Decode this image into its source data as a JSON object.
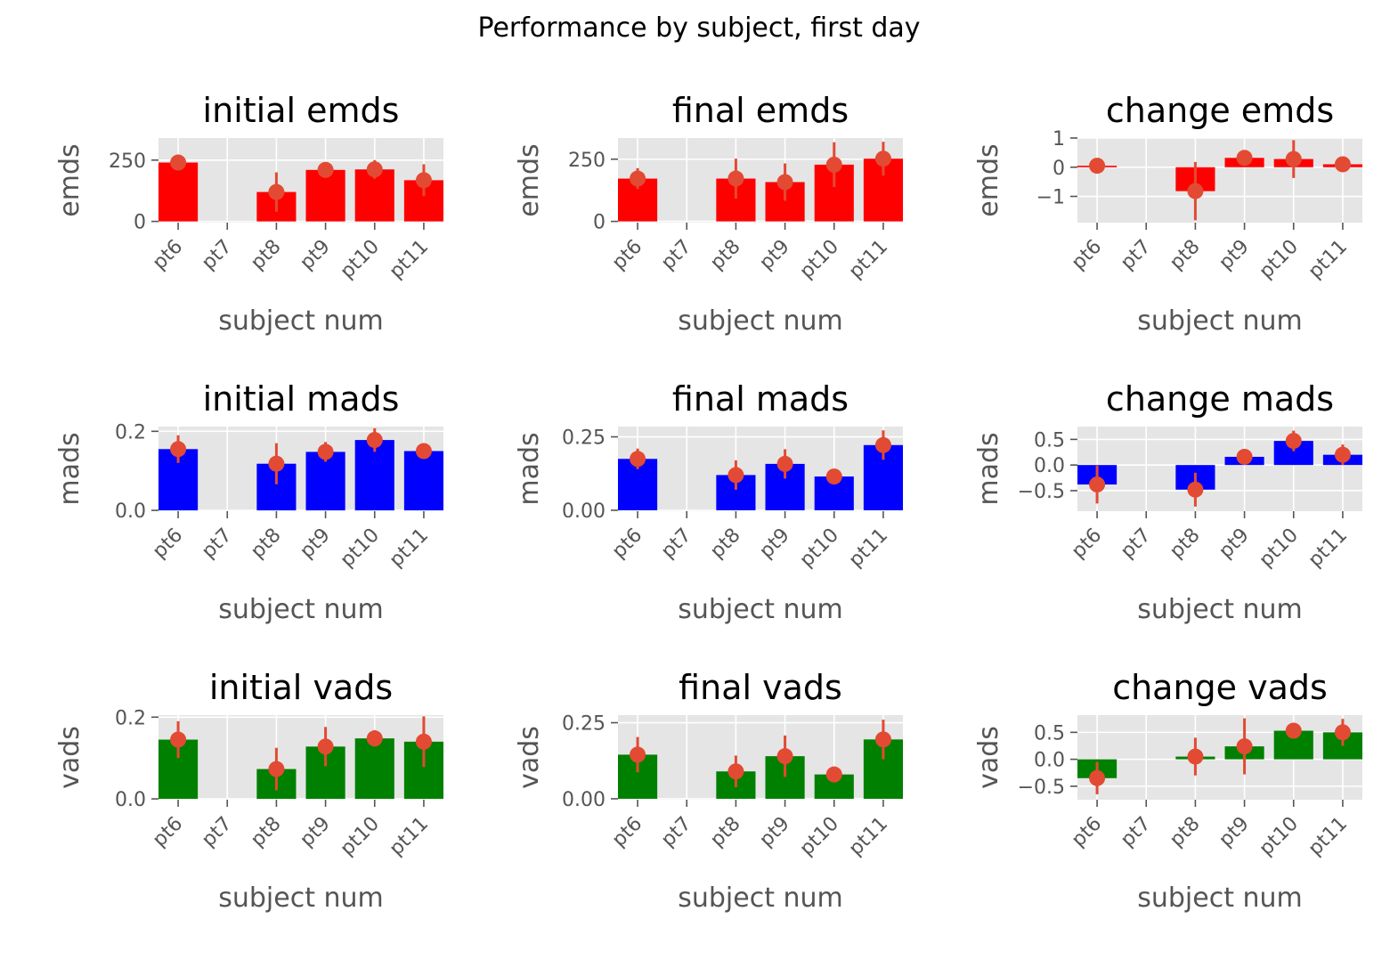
{
  "figure": {
    "suptitle": "Performance by subject, first day"
  },
  "style": {
    "panel_bg": "#e5e5e5",
    "grid_color": "#ffffff",
    "marker_color": "#e24a33",
    "tick_color": "#555555",
    "title_color": "#000000"
  },
  "chart_data": [
    {
      "type": "bar",
      "title": "initial emds",
      "xlabel": "subject num",
      "ylabel": "emds",
      "categories": [
        "pt6",
        "pt7",
        "pt8",
        "pt9",
        "pt10",
        "pt11"
      ],
      "values": [
        240,
        null,
        120,
        210,
        212,
        168
      ],
      "points": [
        240,
        null,
        120,
        210,
        212,
        168
      ],
      "errors": [
        18,
        null,
        80,
        18,
        38,
        65
      ],
      "color": "#ff0000",
      "ylim": [
        -5,
        340
      ],
      "yticks": [
        0,
        250
      ],
      "ytick_labels": [
        "0",
        "250"
      ]
    },
    {
      "type": "bar",
      "title": "final emds",
      "xlabel": "subject num",
      "ylabel": "emds",
      "categories": [
        "pt6",
        "pt7",
        "pt8",
        "pt9",
        "pt10",
        "pt11"
      ],
      "values": [
        172,
        null,
        172,
        158,
        228,
        252
      ],
      "points": [
        172,
        null,
        172,
        158,
        228,
        252
      ],
      "errors": [
        42,
        null,
        80,
        75,
        90,
        68
      ],
      "color": "#ff0000",
      "ylim": [
        -5,
        335
      ],
      "yticks": [
        0,
        250
      ],
      "ytick_labels": [
        "0",
        "250"
      ]
    },
    {
      "type": "bar",
      "title": "change emds",
      "xlabel": "subject num",
      "ylabel": "emds",
      "categories": [
        "pt6",
        "pt7",
        "pt8",
        "pt9",
        "pt10",
        "pt11"
      ],
      "values": [
        0.05,
        null,
        -0.82,
        0.32,
        0.28,
        0.1
      ],
      "points": [
        0.05,
        null,
        -0.82,
        0.32,
        0.28,
        0.1
      ],
      "errors": [
        0.05,
        null,
        1.0,
        0.15,
        0.65,
        0.08
      ],
      "color": "#ff0000",
      "ylim": [
        -1.9,
        1.0
      ],
      "yticks": [
        -1,
        0,
        1
      ],
      "ytick_labels": [
        "−1",
        "0",
        "1"
      ]
    },
    {
      "type": "bar",
      "title": "initial mads",
      "xlabel": "subject num",
      "ylabel": "mads",
      "categories": [
        "pt6",
        "pt7",
        "pt8",
        "pt9",
        "pt10",
        "pt11"
      ],
      "values": [
        0.155,
        null,
        0.118,
        0.148,
        0.178,
        0.15
      ],
      "points": [
        0.155,
        null,
        0.118,
        0.148,
        0.178,
        0.15
      ],
      "errors": [
        0.035,
        null,
        0.052,
        0.025,
        0.03,
        0.015
      ],
      "color": "#0000ff",
      "ylim": [
        -0.002,
        0.212
      ],
      "yticks": [
        0.0,
        0.2
      ],
      "ytick_labels": [
        "0.0",
        "0.2"
      ]
    },
    {
      "type": "bar",
      "title": "final mads",
      "xlabel": "subject num",
      "ylabel": "mads",
      "categories": [
        "pt6",
        "pt7",
        "pt8",
        "pt9",
        "pt10",
        "pt11"
      ],
      "values": [
        0.175,
        null,
        0.12,
        0.158,
        0.115,
        0.222
      ],
      "points": [
        0.175,
        null,
        0.12,
        0.158,
        0.115,
        0.222
      ],
      "errors": [
        0.035,
        null,
        0.05,
        0.05,
        0.025,
        0.05
      ],
      "color": "#0000ff",
      "ylim": [
        -0.003,
        0.285
      ],
      "yticks": [
        0.0,
        0.25
      ],
      "ytick_labels": [
        "0.00",
        "0.25"
      ]
    },
    {
      "type": "bar",
      "title": "change mads",
      "xlabel": "subject num",
      "ylabel": "mads",
      "categories": [
        "pt6",
        "pt7",
        "pt8",
        "pt9",
        "pt10",
        "pt11"
      ],
      "values": [
        -0.38,
        null,
        -0.48,
        0.16,
        0.47,
        0.2
      ],
      "points": [
        -0.38,
        null,
        -0.48,
        0.16,
        0.47,
        0.2
      ],
      "errors": [
        0.37,
        null,
        0.33,
        0.12,
        0.2,
        0.2
      ],
      "color": "#0000ff",
      "ylim": [
        -0.9,
        0.75
      ],
      "yticks": [
        -0.5,
        0.0,
        0.5
      ],
      "ytick_labels": [
        "−0.5",
        "0.0",
        "0.5"
      ]
    },
    {
      "type": "bar",
      "title": "initial vads",
      "xlabel": "subject num",
      "ylabel": "vads",
      "categories": [
        "pt6",
        "pt7",
        "pt8",
        "pt9",
        "pt10",
        "pt11"
      ],
      "values": [
        0.145,
        null,
        0.073,
        0.128,
        0.148,
        0.14
      ],
      "points": [
        0.145,
        null,
        0.073,
        0.128,
        0.148,
        0.14
      ],
      "errors": [
        0.045,
        null,
        0.052,
        0.048,
        0.02,
        0.062
      ],
      "color": "#008000",
      "ylim": [
        -0.002,
        0.205
      ],
      "yticks": [
        0.0,
        0.2
      ],
      "ytick_labels": [
        "0.0",
        "0.2"
      ]
    },
    {
      "type": "bar",
      "title": "final vads",
      "xlabel": "subject num",
      "ylabel": "vads",
      "categories": [
        "pt6",
        "pt7",
        "pt8",
        "pt9",
        "pt10",
        "pt11"
      ],
      "values": [
        0.145,
        null,
        0.09,
        0.14,
        0.08,
        0.195
      ],
      "points": [
        0.145,
        null,
        0.09,
        0.14,
        0.08,
        0.195
      ],
      "errors": [
        0.058,
        null,
        0.052,
        0.068,
        0.012,
        0.065
      ],
      "color": "#008000",
      "ylim": [
        -0.003,
        0.275
      ],
      "yticks": [
        0.0,
        0.25
      ],
      "ytick_labels": [
        "0.00",
        "0.25"
      ]
    },
    {
      "type": "bar",
      "title": "change vads",
      "xlabel": "subject num",
      "ylabel": "vads",
      "categories": [
        "pt6",
        "pt7",
        "pt8",
        "pt9",
        "pt10",
        "pt11"
      ],
      "values": [
        -0.35,
        null,
        0.05,
        0.24,
        0.53,
        0.5
      ],
      "points": [
        -0.35,
        null,
        0.05,
        0.24,
        0.53,
        0.5
      ],
      "errors": [
        0.3,
        null,
        0.35,
        0.52,
        0.05,
        0.25
      ],
      "color": "#008000",
      "ylim": [
        -0.75,
        0.82
      ],
      "yticks": [
        -0.5,
        0.0,
        0.5
      ],
      "ytick_labels": [
        "−0.5",
        "0.0",
        "0.5"
      ]
    }
  ]
}
